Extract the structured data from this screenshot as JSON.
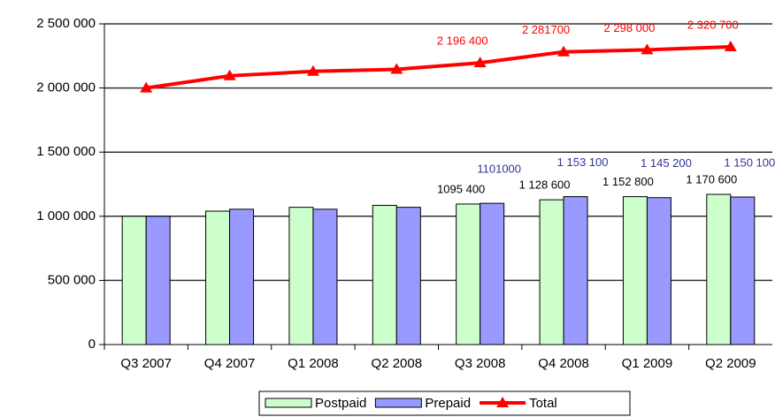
{
  "chart_data": {
    "type": "bar",
    "categories": [
      "Q3 2007",
      "Q4 2007",
      "Q1 2008",
      "Q2 2008",
      "Q3 2008",
      "Q4 2008",
      "Q1 2009",
      "Q2 2009"
    ],
    "series": [
      {
        "name": "Postpaid",
        "color": "#ccffcc",
        "values": [
          1000000,
          1040000,
          1070000,
          1085000,
          1095400,
          1128600,
          1152800,
          1170600
        ],
        "value_labels": [
          null,
          null,
          null,
          null,
          "1095 400",
          "1 128 600",
          "1 152 800",
          "1 170 600"
        ]
      },
      {
        "name": "Prepaid",
        "color": "#9999ff",
        "values": [
          1000000,
          1055000,
          1055000,
          1070000,
          1101000,
          1153100,
          1145200,
          1150100
        ],
        "value_labels": [
          null,
          null,
          null,
          null,
          "1101000",
          "1 153 100",
          "1 145 200",
          "1 150 100"
        ]
      },
      {
        "name": "Total",
        "type": "line",
        "color": "#ff0000",
        "values": [
          2000000,
          2095000,
          2130000,
          2145000,
          2196400,
          2281700,
          2298000,
          2320700
        ],
        "value_labels": [
          null,
          null,
          null,
          null,
          "2 196 400",
          "2 281700",
          "2 298 000",
          "2 320 700"
        ]
      }
    ],
    "ylim": [
      0,
      2500000
    ],
    "yticks": [
      0,
      {
        "value": 500000,
        "label": "500 000"
      },
      {
        "value": 1000000,
        "label": "1 000 000"
      },
      {
        "value": 1500000,
        "label": "1 500 000"
      },
      {
        "value": 2000000,
        "label": "2 000 000"
      },
      {
        "value": 2500000,
        "label": "2 500 000"
      }
    ],
    "grid": true,
    "legend": "bottom"
  }
}
